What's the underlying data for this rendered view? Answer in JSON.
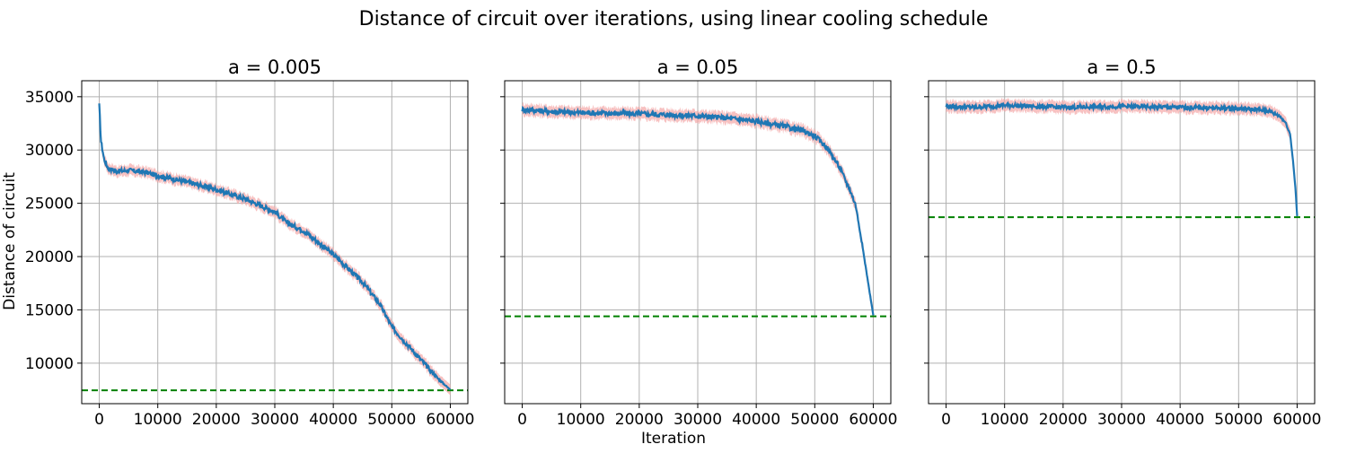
{
  "figure": {
    "title": "Distance of circuit over iterations, using linear cooling schedule",
    "xlabel": "Iteration",
    "ylabel": "Distance of circuit"
  },
  "colors": {
    "line": "#1f77b4",
    "band": "#f4a6a6",
    "best": "#008000",
    "grid": "#b0b0b0"
  },
  "chart_data": [
    {
      "type": "line",
      "title": "a = 0.005",
      "xlim": [
        -3000,
        63000
      ],
      "ylim": [
        6200,
        36500
      ],
      "xticks": [
        0,
        10000,
        20000,
        30000,
        40000,
        50000,
        60000
      ],
      "yticks": [
        10000,
        15000,
        20000,
        25000,
        30000,
        35000
      ],
      "grid": true,
      "series": [
        {
          "x": [
            0,
            300,
            800,
            1500,
            3000,
            5000,
            8000,
            10000,
            15000,
            20000,
            25000,
            30000,
            32000,
            35000,
            40000,
            45000,
            48000,
            50000,
            55000,
            58000,
            60000
          ],
          "y": [
            34200,
            30800,
            29200,
            28300,
            28000,
            28100,
            27900,
            27600,
            27000,
            26300,
            25400,
            24200,
            23200,
            22400,
            20200,
            17600,
            15500,
            13400,
            10300,
            8500,
            7500
          ]
        }
      ],
      "band": {
        "halfwidth": 500
      },
      "hline": 7450,
      "noise": 220
    },
    {
      "type": "line",
      "title": "a = 0.05",
      "xlim": [
        -3000,
        63000
      ],
      "ylim": [
        6200,
        36500
      ],
      "xticks": [
        0,
        10000,
        20000,
        30000,
        40000,
        50000,
        60000
      ],
      "yticks": [
        10000,
        15000,
        20000,
        25000,
        30000,
        35000
      ],
      "grid": true,
      "series": [
        {
          "x": [
            0,
            5000,
            10000,
            20000,
            30000,
            35000,
            40000,
            45000,
            48000,
            50000,
            52000,
            54000,
            56000,
            57000,
            58000,
            59000,
            60000
          ],
          "y": [
            33800,
            33600,
            33500,
            33400,
            33200,
            33000,
            32700,
            32200,
            31800,
            31300,
            30300,
            28600,
            26300,
            24800,
            21500,
            18000,
            14500
          ]
        }
      ],
      "band": {
        "halfwidth": 550
      },
      "hline": 14400,
      "noise": 240
    },
    {
      "type": "line",
      "title": "a = 0.5",
      "xlim": [
        -3000,
        63000
      ],
      "ylim": [
        6200,
        36500
      ],
      "xticks": [
        0,
        10000,
        20000,
        30000,
        40000,
        50000,
        60000
      ],
      "yticks": [
        10000,
        15000,
        20000,
        25000,
        30000,
        35000
      ],
      "grid": true,
      "series": [
        {
          "x": [
            0,
            5000,
            10000,
            20000,
            30000,
            40000,
            50000,
            55000,
            57000,
            58000,
            58800,
            59300,
            59700,
            60000
          ],
          "y": [
            34100,
            34000,
            34200,
            34000,
            34100,
            34000,
            33900,
            33700,
            33200,
            32600,
            31500,
            29000,
            26500,
            23800
          ]
        }
      ],
      "band": {
        "halfwidth": 550
      },
      "hline": 23700,
      "noise": 200
    }
  ]
}
